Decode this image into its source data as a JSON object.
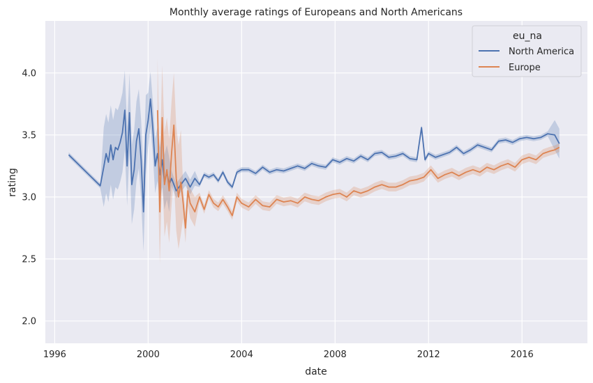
{
  "chart_data": {
    "type": "line",
    "title": "Monthly average ratings of Europeans and North Americans",
    "xlabel": "date",
    "ylabel": "rating",
    "xlim": [
      1995.6,
      2018.8
    ],
    "ylim": [
      1.82,
      4.42
    ],
    "xticks": [
      1996,
      2000,
      2004,
      2008,
      2012,
      2016
    ],
    "yticks": [
      2.0,
      2.5,
      3.0,
      3.5,
      4.0
    ],
    "ytick_labels": [
      "2.0",
      "2.5",
      "3.0",
      "3.5",
      "4.0"
    ],
    "grid": true,
    "legend": {
      "title": "eu_na",
      "position": "top-right"
    },
    "colors": {
      "North America": "#4c72b0",
      "Europe": "#dd8452",
      "background": "#eaeaf2",
      "grid": "#ffffff"
    },
    "series": [
      {
        "name": "North America",
        "color": "#4c72b0",
        "x": [
          1996.6,
          1997.95,
          1998.1,
          1998.2,
          1998.3,
          1998.4,
          1998.5,
          1998.6,
          1998.7,
          1998.8,
          1998.9,
          1999.0,
          1999.1,
          1999.2,
          1999.3,
          1999.4,
          1999.5,
          1999.6,
          1999.7,
          1999.8,
          1999.9,
          2000.0,
          2000.1,
          2000.2,
          2000.3,
          2000.4,
          2000.5,
          2000.6,
          2000.7,
          2000.8,
          2000.9,
          2001.0,
          2001.2,
          2001.4,
          2001.6,
          2001.8,
          2002.0,
          2002.2,
          2002.4,
          2002.6,
          2002.8,
          2003.0,
          2003.2,
          2003.4,
          2003.6,
          2003.8,
          2004.0,
          2004.3,
          2004.6,
          2004.9,
          2005.2,
          2005.5,
          2005.8,
          2006.1,
          2006.4,
          2006.7,
          2007.0,
          2007.3,
          2007.6,
          2007.9,
          2008.2,
          2008.5,
          2008.8,
          2009.1,
          2009.4,
          2009.7,
          2010.0,
          2010.3,
          2010.6,
          2010.9,
          2011.2,
          2011.5,
          2011.7,
          2011.85,
          2012.0,
          2012.3,
          2012.6,
          2012.9,
          2013.2,
          2013.5,
          2013.8,
          2014.1,
          2014.4,
          2014.7,
          2015.0,
          2015.3,
          2015.6,
          2015.9,
          2016.2,
          2016.5,
          2016.8,
          2017.1,
          2017.4,
          2017.6
        ],
        "y": [
          3.34,
          3.09,
          3.24,
          3.35,
          3.28,
          3.42,
          3.3,
          3.4,
          3.38,
          3.44,
          3.52,
          3.7,
          3.25,
          3.68,
          3.1,
          3.22,
          3.45,
          3.55,
          3.3,
          2.88,
          3.5,
          3.62,
          3.79,
          3.55,
          3.25,
          3.35,
          3.18,
          3.3,
          3.12,
          3.2,
          3.1,
          3.15,
          3.05,
          3.1,
          3.15,
          3.08,
          3.15,
          3.1,
          3.18,
          3.16,
          3.18,
          3.13,
          3.2,
          3.12,
          3.08,
          3.2,
          3.22,
          3.22,
          3.19,
          3.24,
          3.2,
          3.22,
          3.21,
          3.23,
          3.25,
          3.23,
          3.27,
          3.25,
          3.24,
          3.3,
          3.28,
          3.31,
          3.29,
          3.33,
          3.3,
          3.35,
          3.36,
          3.32,
          3.33,
          3.35,
          3.31,
          3.3,
          3.56,
          3.3,
          3.35,
          3.32,
          3.34,
          3.36,
          3.4,
          3.35,
          3.38,
          3.42,
          3.4,
          3.38,
          3.45,
          3.46,
          3.44,
          3.47,
          3.48,
          3.47,
          3.48,
          3.51,
          3.5,
          3.43
        ]
      },
      {
        "name": "Europe",
        "color": "#dd8452",
        "x": [
          2000.4,
          2000.5,
          2000.6,
          2000.7,
          2000.8,
          2000.9,
          2001.0,
          2001.1,
          2001.2,
          2001.3,
          2001.4,
          2001.5,
          2001.6,
          2001.7,
          2001.8,
          2002.0,
          2002.2,
          2002.4,
          2002.6,
          2002.8,
          2003.0,
          2003.2,
          2003.4,
          2003.6,
          2003.8,
          2004.0,
          2004.3,
          2004.6,
          2004.9,
          2005.2,
          2005.5,
          2005.8,
          2006.1,
          2006.4,
          2006.7,
          2007.0,
          2007.3,
          2007.6,
          2007.9,
          2008.2,
          2008.5,
          2008.8,
          2009.1,
          2009.4,
          2009.7,
          2010.0,
          2010.3,
          2010.6,
          2010.9,
          2011.2,
          2011.5,
          2011.8,
          2012.1,
          2012.4,
          2012.7,
          2013.0,
          2013.3,
          2013.6,
          2013.9,
          2014.2,
          2014.5,
          2014.8,
          2015.1,
          2015.4,
          2015.7,
          2016.0,
          2016.3,
          2016.6,
          2016.9,
          2017.2,
          2017.4,
          2017.6
        ],
        "y": [
          3.7,
          2.88,
          3.64,
          3.1,
          3.22,
          3.05,
          3.35,
          3.58,
          3.15,
          3.0,
          3.12,
          2.95,
          2.75,
          3.05,
          2.95,
          2.88,
          3.0,
          2.9,
          3.02,
          2.95,
          2.92,
          2.98,
          2.92,
          2.85,
          3.0,
          2.95,
          2.92,
          2.98,
          2.93,
          2.92,
          2.98,
          2.96,
          2.97,
          2.95,
          3.0,
          2.98,
          2.97,
          3.0,
          3.02,
          3.03,
          3.0,
          3.05,
          3.03,
          3.05,
          3.08,
          3.1,
          3.08,
          3.08,
          3.1,
          3.13,
          3.14,
          3.16,
          3.22,
          3.15,
          3.18,
          3.2,
          3.17,
          3.2,
          3.22,
          3.2,
          3.24,
          3.22,
          3.25,
          3.27,
          3.24,
          3.3,
          3.32,
          3.3,
          3.35,
          3.37,
          3.38,
          3.4
        ]
      }
    ]
  }
}
